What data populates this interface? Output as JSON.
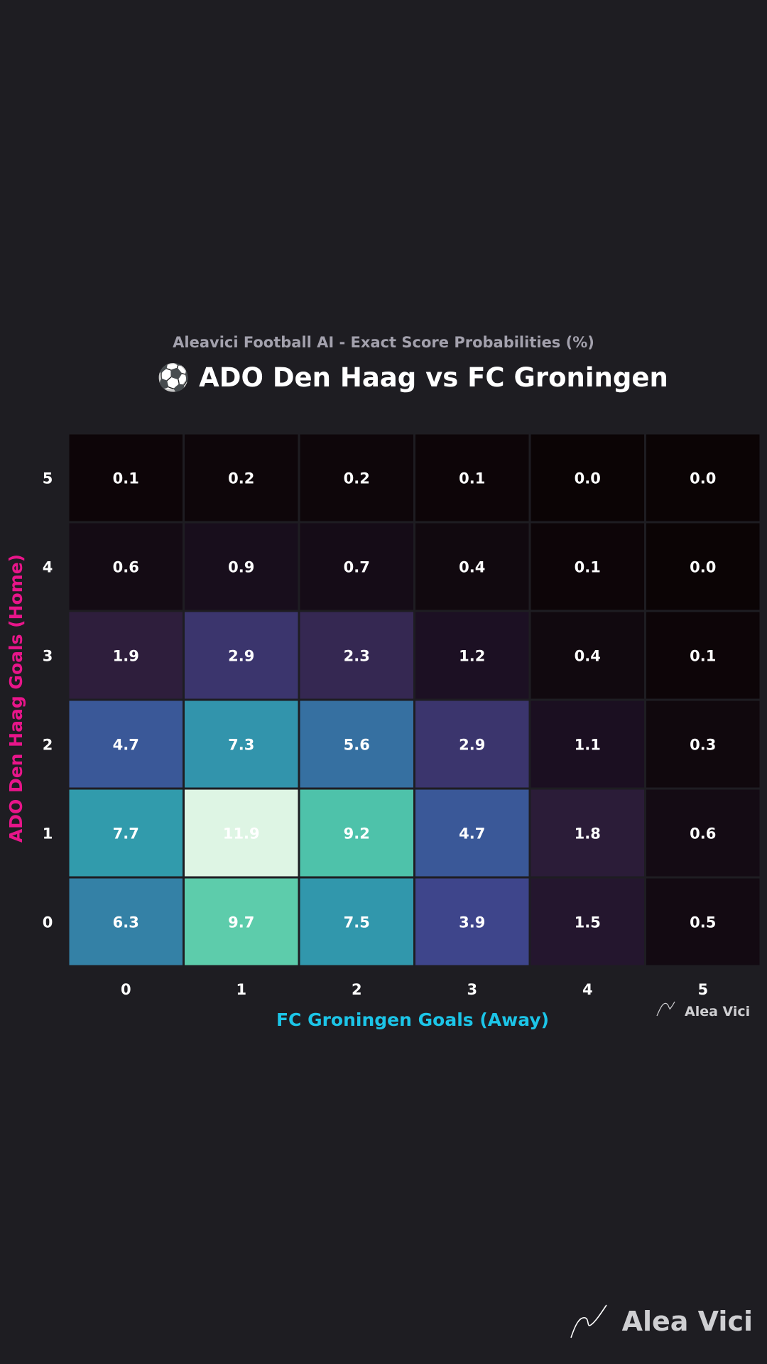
{
  "header": {
    "subtitle": "Aleavici Football AI - Exact Score Probabilities (%)",
    "title": "⚽ ADO Den Haag vs FC Groningen"
  },
  "watermark": {
    "small_text": "Alea Vici",
    "large_text": "Alea Vici",
    "icon": "signature-squiggle-icon"
  },
  "colors": {
    "background": "#1e1d22",
    "ylabel": "#e8158a",
    "xlabel": "#1cc5e8",
    "colormap": "mako"
  },
  "chart_data": {
    "type": "heatmap",
    "xlabel": "FC Groningen Goals (Away)",
    "ylabel": "ADO Den Haag Goals (Home)",
    "x_categories": [
      "0",
      "1",
      "2",
      "3",
      "4",
      "5"
    ],
    "y_categories": [
      "0",
      "1",
      "2",
      "3",
      "4",
      "5"
    ],
    "y_order": "bottom-to-top",
    "values": [
      [
        6.3,
        9.7,
        7.5,
        3.9,
        1.5,
        0.5
      ],
      [
        7.7,
        11.9,
        9.2,
        4.7,
        1.8,
        0.6
      ],
      [
        4.7,
        7.3,
        5.6,
        2.9,
        1.1,
        0.3
      ],
      [
        1.9,
        2.9,
        2.3,
        1.2,
        0.4,
        0.1
      ],
      [
        0.6,
        0.9,
        0.7,
        0.4,
        0.1,
        0.0
      ],
      [
        0.1,
        0.2,
        0.2,
        0.1,
        0.0,
        0.0
      ]
    ],
    "value_range": [
      0,
      11.9
    ],
    "grid": true
  }
}
